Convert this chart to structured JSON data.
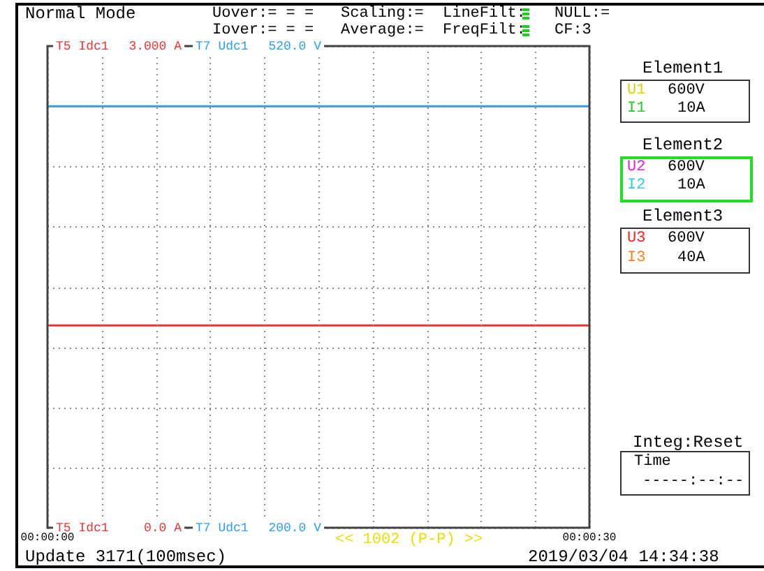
{
  "chart_data": {
    "type": "line",
    "x": [
      0,
      30
    ],
    "series": [
      {
        "name": "T5 Idc1",
        "color": "#ee3333",
        "values": [
          1.26,
          1.26
        ]
      },
      {
        "name": "T7 Udc1",
        "color": "#2a9df4",
        "axis": "y2",
        "values": [
          480,
          480
        ]
      }
    ],
    "xlim": [
      0,
      30
    ],
    "xticks": [
      {
        "value": 0,
        "label": "00:00:00"
      },
      {
        "value": 3,
        "label": null
      },
      {
        "value": 6,
        "label": null
      },
      {
        "value": 9,
        "label": null
      },
      {
        "value": 12,
        "label": null
      },
      {
        "value": 15,
        "label": null
      },
      {
        "value": 18,
        "label": null
      },
      {
        "value": 21,
        "label": null
      },
      {
        "value": 24,
        "label": null
      },
      {
        "value": 27,
        "label": null
      },
      {
        "value": 30,
        "label": "00:00:30"
      }
    ],
    "ylim": [
      0,
      3
    ],
    "yticks": [
      {
        "value": 0,
        "label": "0.0 A"
      },
      {
        "value": 0.375,
        "label": null
      },
      {
        "value": 0.75,
        "label": null
      },
      {
        "value": 1.125,
        "label": null
      },
      {
        "value": 1.5,
        "label": null
      },
      {
        "value": 1.875,
        "label": null
      },
      {
        "value": 2.25,
        "label": null
      },
      {
        "value": 2.625,
        "label": null
      },
      {
        "value": 3,
        "label": "3.000 A"
      }
    ],
    "y2lim": [
      200,
      520
    ],
    "y2ticks": [
      {
        "value": 200,
        "label": "200.0 V"
      },
      {
        "value": 520,
        "label": "520.0 V"
      }
    ],
    "grid": true,
    "legend": false,
    "marker": "none",
    "line_style": "solid",
    "annotations": [
      "Normal Mode",
      "Uover:= = =",
      "Iover:= = =",
      "Scaling:=",
      "Average:=",
      "LineFilt:",
      "FreqFilt:",
      "NULL:=",
      "CF:3",
      "Element1",
      "U1",
      "600V",
      "I1",
      "10A",
      "Element2",
      "U2",
      "600V",
      "I2",
      "10A",
      "Element3",
      "U3",
      "600V",
      "I3",
      "40A",
      "Integ:Reset",
      "Time",
      "-----:--:--",
      "<< 1002 (P-P) >>",
      "Update 3171(100msec)",
      "2019/03/04 14:34:38"
    ]
  }
}
